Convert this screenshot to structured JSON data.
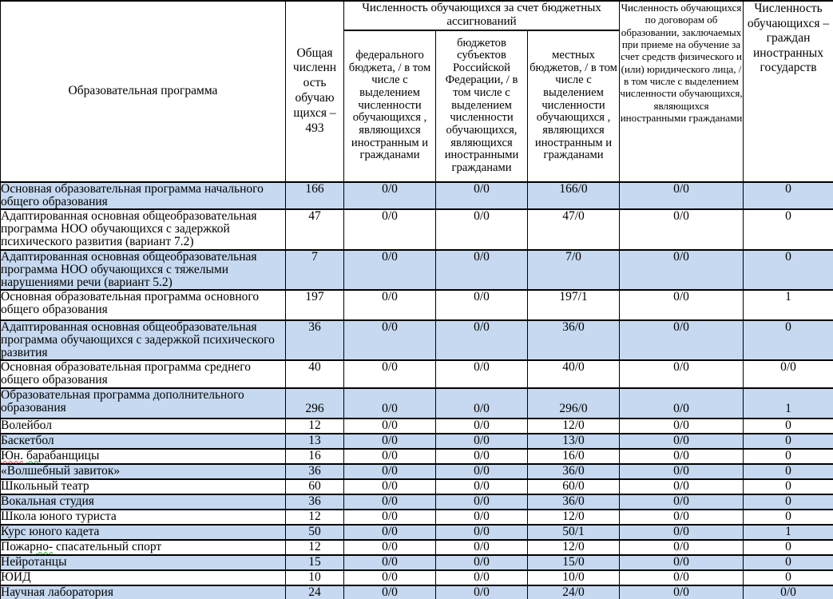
{
  "colors": {
    "row_stripe": "#C6D9F0",
    "border": "#000000",
    "background": "#FFFFFF"
  },
  "table": {
    "header": {
      "program": "Образовательная программа",
      "total": "Общая\nчисленн\nость\nобучаю\nщихся –\n493",
      "budget_group": "Численность обучающихся за счет бюджетных ассигнований",
      "federal": "федерального бюджета, / в том числе с выделением численности обучающихся , являющихся иностранным и гражданами",
      "regional": "бюджетов субъектов Российской Федерации, / в том числе с выделением численности обучающихся, являющихся иностранными гражданами",
      "local": "местных бюджетов, / в том числе с выделением численности обучающихся , являющихся иностранным и гражданами",
      "contracts": "Численность обучающихся по договорам об образовании, заключаемых при приеме на обучение за счет средств физического и (или) юридического лица, / в том числе с выделением численности обучающихся, являющихся иностранными гражданами",
      "foreign": "Численность обучающихся – граждан иностранных государств"
    },
    "rows": [
      {
        "program": "Основная образовательная программа начального общего образования",
        "total": "166",
        "federal": "0/0",
        "regional": "0/0",
        "local": "166/0",
        "contracts": "0/0",
        "foreign": "0"
      },
      {
        "program": "Адаптированная основная общеобразовательная программа НОО обучающихся с задержкой психического развития (вариант 7.2)",
        "total": "47",
        "federal": "0/0",
        "regional": "0/0",
        "local": "47/0",
        "contracts": "0/0",
        "foreign": "0"
      },
      {
        "program": "Адаптированная основная общеобразовательная программа НОО обучающихся с тяжелыми нарушениями речи (вариант 5.2)",
        "total": "7",
        "federal": "0/0",
        "regional": "0/0",
        "local": "7/0",
        "contracts": "0/0",
        "foreign": "0"
      },
      {
        "program": "Основная образовательная программа основного общего образования",
        "total": "197",
        "federal": "0/0",
        "regional": "0/0",
        "local": "197/1",
        "contracts": "0/0",
        "foreign": "1"
      },
      {
        "program": "Адаптированная основная общеобразовательная программа обучающихся с задержкой психического развития",
        "total": "36",
        "federal": "0/0",
        "regional": "0/0",
        "local": "36/0",
        "contracts": "0/0",
        "foreign": "0"
      },
      {
        "program": "Основная образовательная программа среднего общего образования",
        "total": "40",
        "federal": "0/0",
        "regional": "0/0",
        "local": "40/0",
        "contracts": "0/0",
        "foreign": "0/0"
      },
      {
        "program": "Образовательная программа дополнительного образования",
        "total": "296",
        "federal": "0/0",
        "regional": "0/0",
        "local": "296/0",
        "contracts": "0/0",
        "foreign": "1"
      },
      {
        "program": "Волейбол",
        "total": "12",
        "federal": "0/0",
        "regional": "0/0",
        "local": "12/0",
        "contracts": "0/0",
        "foreign": "0"
      },
      {
        "program": "Баскетбол",
        "total": "13",
        "federal": "0/0",
        "regional": "0/0",
        "local": "13/0",
        "contracts": "0/0",
        "foreign": "0"
      },
      {
        "program": "Юн. барабанщицы",
        "total": "16",
        "federal": "0/0",
        "regional": "0/0",
        "local": "16/0",
        "contracts": "0/0",
        "foreign": "0",
        "marks": [
          {
            "text": "Юн.",
            "type": "red"
          },
          {
            "text": "ба",
            "type": "green"
          }
        ]
      },
      {
        "program": "«Волшебный завиток»",
        "total": "36",
        "federal": "0/0",
        "regional": "0/0",
        "local": "36/0",
        "contracts": "0/0",
        "foreign": "0"
      },
      {
        "program": "Школьный театр",
        "total": "60",
        "federal": "0/0",
        "regional": "0/0",
        "local": "60/0",
        "contracts": "0/0",
        "foreign": "0"
      },
      {
        "program": "Вокальная студия",
        "total": "36",
        "federal": "0/0",
        "regional": "0/0",
        "local": "36/0",
        "contracts": "0/0",
        "foreign": "0"
      },
      {
        "program": "Школа юного туриста",
        "total": "12",
        "federal": "0/0",
        "regional": "0/0",
        "local": "12/0",
        "contracts": "0/0",
        "foreign": "0"
      },
      {
        "program": "Курс юного кадета",
        "total": "50",
        "federal": "0/0",
        "regional": "0/0",
        "local": "50/1",
        "contracts": "0/0",
        "foreign": "1"
      },
      {
        "program": "Пожарно- спасательный спорт",
        "total": "12",
        "federal": "0/0",
        "regional": "0/0",
        "local": "12/0",
        "contracts": "0/0",
        "foreign": "0",
        "marks": [
          {
            "text": "но-",
            "type": "green"
          }
        ]
      },
      {
        "program": "Нейротанцы",
        "total": "15",
        "federal": "0/0",
        "regional": "0/0",
        "local": "15/0",
        "contracts": "0/0",
        "foreign": "0"
      },
      {
        "program": "ЮИД",
        "total": "10",
        "federal": "0/0",
        "regional": "0/0",
        "local": "10/0",
        "contracts": "0/0",
        "foreign": "0"
      },
      {
        "program": "Научная лаборатория",
        "total": "24",
        "federal": "0/0",
        "regional": "0/0",
        "local": "24/0",
        "contracts": "0/0",
        "foreign": "0/0"
      }
    ]
  }
}
